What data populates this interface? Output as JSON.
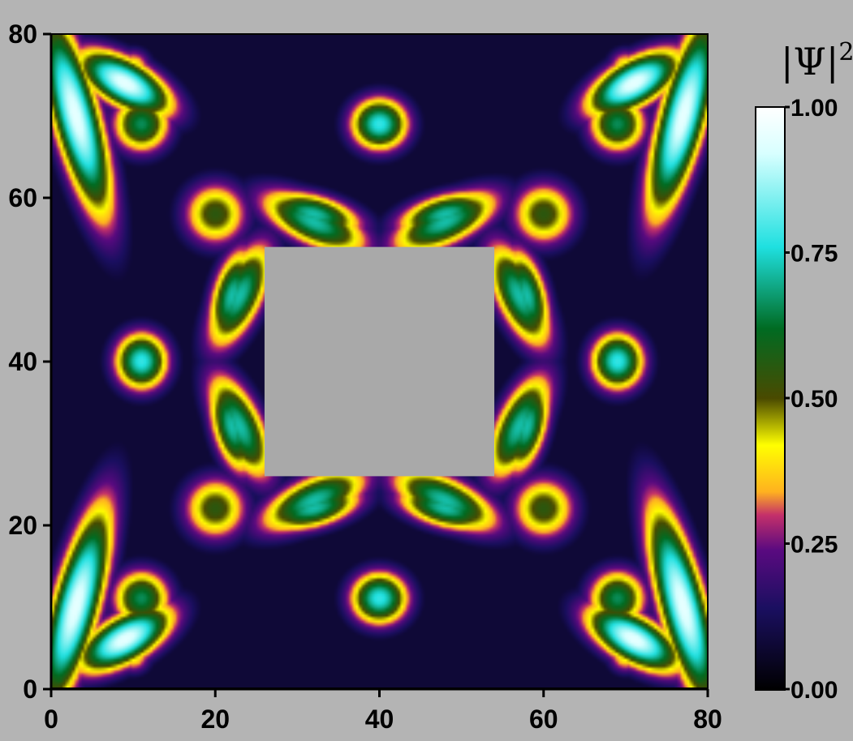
{
  "chart_data": {
    "type": "heatmap",
    "title": "",
    "xlabel": "",
    "ylabel": "",
    "xlim": [
      0,
      80
    ],
    "ylim": [
      0,
      80
    ],
    "x_ticks": [
      0,
      20,
      40,
      60,
      80
    ],
    "y_ticks": [
      0,
      20,
      40,
      60,
      80
    ],
    "x_tick_labels": [
      "0",
      "20",
      "40",
      "60",
      "80"
    ],
    "y_tick_labels": [
      "0",
      "20",
      "40",
      "60",
      "80"
    ],
    "hole": {
      "x": [
        26,
        54
      ],
      "y": [
        26,
        54
      ]
    },
    "symmetry": "four-fold",
    "colorbar": {
      "label_base": "|Ψ|",
      "label_exponent": "2",
      "range": [
        0.0,
        1.0
      ],
      "ticks": [
        0.0,
        0.25,
        0.5,
        0.75,
        1.0
      ],
      "tick_labels": [
        "0.00",
        "0.25",
        "0.50",
        "0.75",
        "1.00"
      ],
      "colormap": [
        {
          "value": 0.0,
          "color": "#000000"
        },
        {
          "value": 0.14,
          "color": "#1a0f60"
        },
        {
          "value": 0.24,
          "color": "#5a0a80"
        },
        {
          "value": 0.3,
          "color": "#c4306a"
        },
        {
          "value": 0.34,
          "color": "#ffb21f"
        },
        {
          "value": 0.42,
          "color": "#ffff00"
        },
        {
          "value": 0.5,
          "color": "#4a4a00"
        },
        {
          "value": 0.62,
          "color": "#006b22"
        },
        {
          "value": 0.76,
          "color": "#1fe0e0"
        },
        {
          "value": 0.92,
          "color": "#d8ffff"
        },
        {
          "value": 1.0,
          "color": "#ffffff"
        }
      ]
    },
    "lobes": [
      {
        "cx": 9,
        "cy": 74,
        "rx": 4.5,
        "ry": 2.0,
        "angle": -30,
        "value": 0.95
      },
      {
        "cx": 3,
        "cy": 10,
        "rx": 2.0,
        "ry": 9.0,
        "angle": -15,
        "value": 0.95
      },
      {
        "cx": 11,
        "cy": 40,
        "rx": 2.3,
        "ry": 2.5,
        "angle": 0,
        "value": 0.78
      },
      {
        "cx": 40,
        "cy": 11,
        "rx": 2.5,
        "ry": 2.3,
        "angle": 0,
        "value": 0.78
      },
      {
        "cx": 22,
        "cy": 32,
        "rx": 1.7,
        "ry": 4.2,
        "angle": 15,
        "value": 0.72
      },
      {
        "cx": 32,
        "cy": 22,
        "rx": 4.2,
        "ry": 1.7,
        "angle": 15,
        "value": 0.72
      },
      {
        "cx": 23,
        "cy": 48,
        "rx": 2.0,
        "ry": 5.0,
        "angle": -25,
        "value": 0.72
      },
      {
        "cx": 48,
        "cy": 23,
        "rx": 5.0,
        "ry": 2.0,
        "angle": -25,
        "value": 0.72
      },
      {
        "cx": 11,
        "cy": 11,
        "rx": 2.5,
        "ry": 2.5,
        "angle": 0,
        "value": 0.66
      },
      {
        "cx": 3,
        "cy": 4,
        "rx": 1.5,
        "ry": 1.5,
        "angle": 0,
        "value": 0.44
      },
      {
        "cx": 10,
        "cy": 4,
        "rx": 1.5,
        "ry": 1.5,
        "angle": 0,
        "value": 0.44
      },
      {
        "cx": 3,
        "cy": 11,
        "rx": 1.5,
        "ry": 1.5,
        "angle": 0,
        "value": 0.44
      },
      {
        "cx": 1,
        "cy": 1,
        "rx": 1.2,
        "ry": 0.9,
        "angle": 45,
        "value": 0.6
      },
      {
        "cx": 20,
        "cy": 22,
        "rx": 2.8,
        "ry": 2.8,
        "angle": 0,
        "value": 0.55
      }
    ]
  }
}
